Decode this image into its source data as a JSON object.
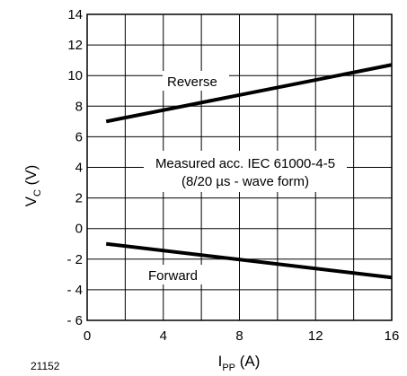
{
  "figure_id": "21152",
  "chart_data": {
    "type": "line",
    "xlabel": {
      "main": "I",
      "sub": "PP",
      "unit": " (A)"
    },
    "ylabel": {
      "main": "V",
      "sub": "C",
      "unit": " (V)"
    },
    "xlim": [
      0,
      16
    ],
    "ylim": [
      -6,
      14
    ],
    "x_ticks": [
      0,
      4,
      8,
      12,
      16
    ],
    "x_tick_labels": [
      "0",
      "4",
      "8",
      "12",
      "16"
    ],
    "y_ticks": [
      -6,
      -4,
      -2,
      0,
      2,
      4,
      6,
      8,
      10,
      12,
      14
    ],
    "y_tick_labels": [
      "- 6",
      "- 4",
      "- 2",
      "0",
      "2",
      "4",
      "6",
      "8",
      "10",
      "12",
      "14"
    ],
    "grid": true,
    "x_grid_step": 2,
    "y_grid_step": 2,
    "series": [
      {
        "name": "Reverse",
        "x": [
          1,
          16
        ],
        "y": [
          7.0,
          10.7
        ],
        "color": "#000000"
      },
      {
        "name": "Forward",
        "x": [
          1,
          16
        ],
        "y": [
          -1.0,
          -3.2
        ],
        "color": "#000000"
      }
    ],
    "annotations": [
      {
        "line1": "Measured acc. IEC 61000-4-5",
        "line2": "(8/20 µs - wave form)"
      }
    ]
  }
}
